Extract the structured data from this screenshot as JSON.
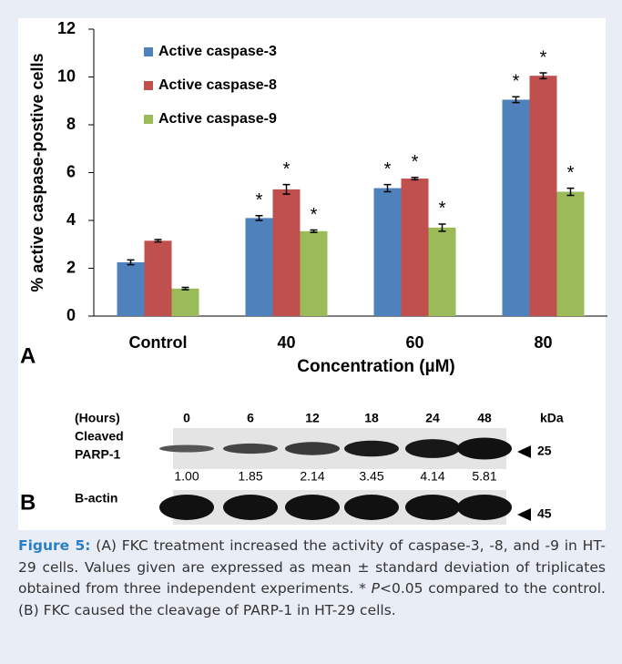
{
  "chart_data": {
    "type": "bar",
    "panel_label": "A",
    "ylabel": "% active caspase-postive cells",
    "xlabel": "Concentration (µM)",
    "categories": [
      "Control",
      "40",
      "60",
      "80"
    ],
    "series": [
      {
        "name": "Active caspase-3",
        "color": "#4f81bd",
        "values": [
          2.25,
          4.1,
          5.35,
          9.05
        ],
        "errors": [
          0.1,
          0.1,
          0.15,
          0.12
        ],
        "annotations": [
          null,
          "*",
          "*",
          "*"
        ]
      },
      {
        "name": "Active caspase-8",
        "color": "#c0504d",
        "values": [
          3.15,
          5.3,
          5.75,
          10.05
        ],
        "errors": [
          0.05,
          0.2,
          0.05,
          0.12
        ],
        "annotations": [
          null,
          "*",
          "*",
          "*"
        ]
      },
      {
        "name": "Active caspase-9",
        "color": "#9bbb59",
        "values": [
          1.15,
          3.55,
          3.7,
          5.2
        ],
        "errors": [
          0.05,
          0.05,
          0.15,
          0.15
        ],
        "annotations": [
          null,
          "*",
          "*",
          "*"
        ]
      }
    ],
    "ylim": [
      0,
      12
    ],
    "yticks": [
      0,
      2,
      4,
      6,
      8,
      10,
      12
    ],
    "legend": "upper-left"
  },
  "blot": {
    "panel_label": "B",
    "header": [
      "(Hours)",
      "0",
      "6",
      "12",
      "18",
      "24",
      "48"
    ],
    "unit": "kDa",
    "rows": [
      {
        "label": [
          "Cleaved",
          "PARP-1"
        ],
        "marker": "25"
      },
      {
        "label": [
          "B-actin"
        ],
        "marker": "45"
      }
    ],
    "densitometry": [
      "1.00",
      "1.85",
      "2.14",
      "3.45",
      "4.14",
      "5.81"
    ]
  },
  "caption": {
    "label": "Figure 5:",
    "text1": "(A) FKC treatment increased the activity of caspase-3, -8, and -9 in HT-29 cells. Values given are expressed as mean ± standard deviation of triplicates obtained from three independent experiments. * ",
    "italic": "P",
    "text2": "<0.05 compared to the control. (B) FKC caused the cleavage of PARP-1 in HT-29 cells."
  }
}
